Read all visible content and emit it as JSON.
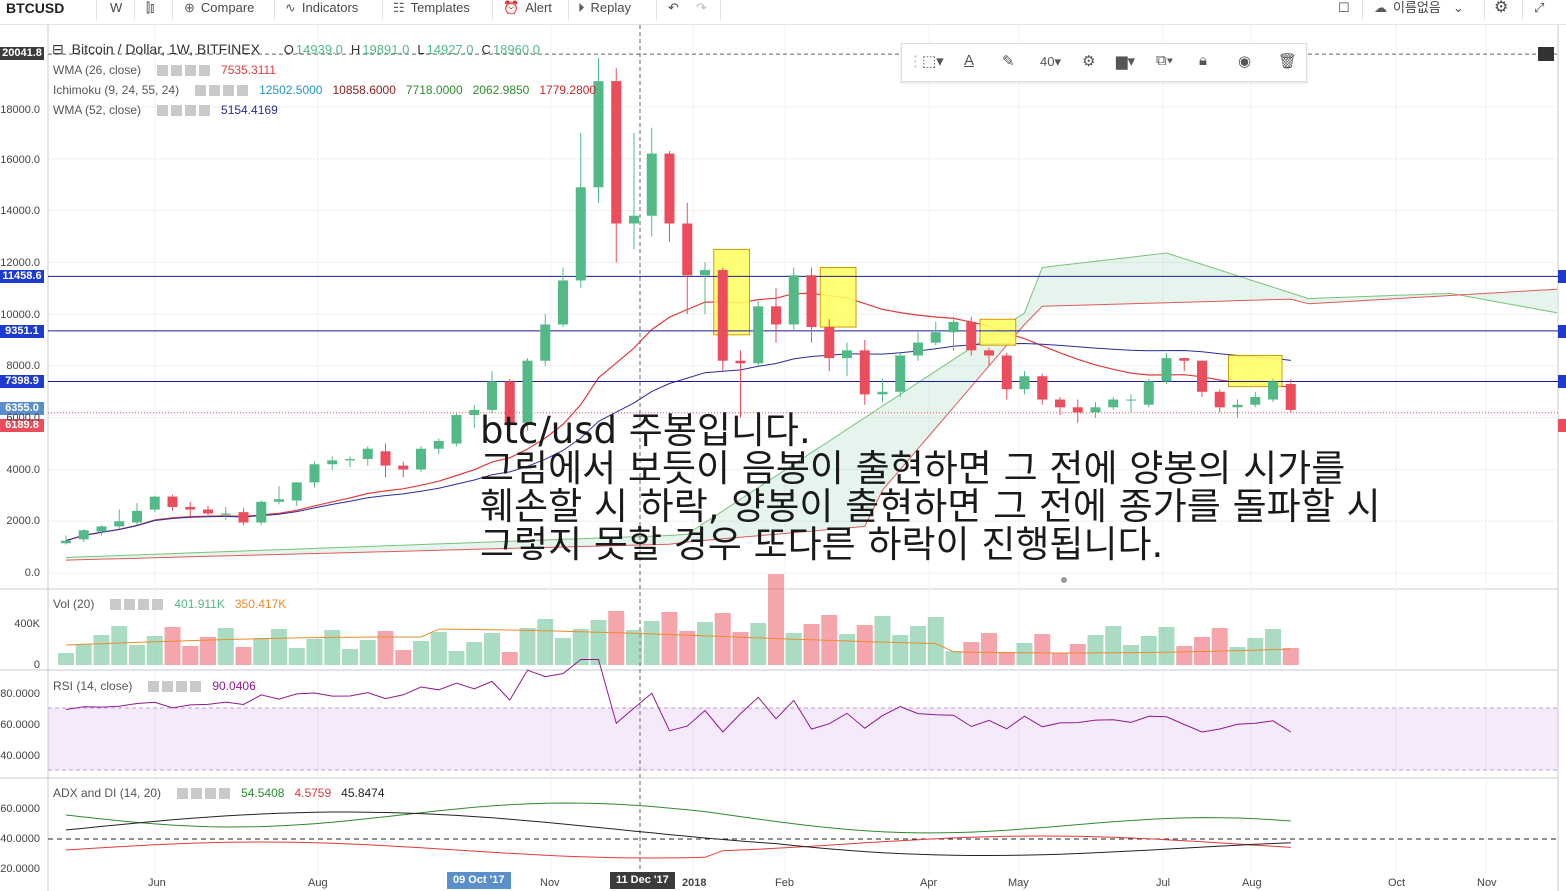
{
  "toolbar": {
    "symbol": "BTCUSD",
    "interval": "W",
    "compare": "Compare",
    "indicators": "Indicators",
    "templates": "Templates",
    "alert": "Alert",
    "replay": "Replay",
    "user": "이름없음"
  },
  "legend": {
    "title": "Bitcoin / Dollar, 1W, BITFINEX",
    "o_label": "O",
    "o": "14939.0",
    "h_label": "H",
    "h": "19891.0",
    "l_label": "L",
    "l": "14927.0",
    "c_label": "C",
    "c": "18960.0",
    "wma26": "WMA (26, close)",
    "wma26_val": "7535.3111",
    "ichimoku": "Ichimoku (9, 24, 55, 24)",
    "ich1": "12502.5000",
    "ich2": "10858.6000",
    "ich3": "7718.0000",
    "ich4": "2062.9850",
    "ich5": "1779.2800",
    "wma52": "WMA (52, close)",
    "wma52_val": "5154.4169",
    "vol": "Vol (20)",
    "vol1": "401.911K",
    "vol2": "350.417K",
    "rsi": "RSI (14, close)",
    "rsi_val": "90.0406",
    "adx": "ADX and DI (14, 20)",
    "adx1": "54.5408",
    "adx2": "4.5759",
    "adx3": "45.8474"
  },
  "price_tags": {
    "top": "20041.8",
    "p1": "11458.6",
    "p2": "9351.1",
    "p3": "7398.9",
    "p4": "6355.0",
    "p5": "6189.8"
  },
  "drawing_toolbar": {
    "size": "40"
  },
  "y_axis": [
    "18000.0",
    "16000.0",
    "14000.0",
    "12000.0",
    "10000.0",
    "8000.0",
    "6000.0",
    "4000.0",
    "2000.0",
    "0.0"
  ],
  "vol_axis": [
    "400K",
    "0"
  ],
  "rsi_axis": [
    "80.0000",
    "60.0000",
    "40.0000"
  ],
  "adx_axis": [
    "60.0000",
    "40.0000",
    "20.0000"
  ],
  "x_axis": [
    "Jun",
    "Aug",
    "Nov",
    "2018",
    "Feb",
    "Apr",
    "May",
    "Jul",
    "Aug",
    "Oct",
    "Nov"
  ],
  "x_badges": {
    "b1": "09 Oct '17",
    "b2": "11 Dec '17"
  },
  "annotation": {
    "line1": "btc/usd 주봉입니다.",
    "line2": "그림에서 보듯이 음봉이 출현하면 그 전에 양봉의 시가를",
    "line3": "훼손할 시 하락, 양봉이 출현하면 그 전에 종가를 돌파할 시",
    "line4": "그렇지 못할 경우 또다른 하락이 진행됩니다."
  },
  "colors": {
    "up": "#53b987",
    "down": "#eb4d5c",
    "highlight": "#ffff66",
    "level_line": "#1c1c9c",
    "tag_blue": "#1e3bd1",
    "tag_red": "#eb4d5c"
  },
  "chart_data": {
    "type": "candlestick",
    "candles": [
      [
        1150,
        1250,
        1100,
        1450
      ],
      [
        1300,
        1650,
        1200,
        1700
      ],
      [
        1600,
        1800,
        1450,
        1850
      ],
      [
        1800,
        2000,
        1700,
        2450
      ],
      [
        1950,
        2400,
        1850,
        2700
      ],
      [
        2450,
        2950,
        2350,
        2990
      ],
      [
        2950,
        2550,
        2400,
        3020
      ],
      [
        2550,
        2450,
        2200,
        2750
      ],
      [
        2450,
        2300,
        2150,
        2600
      ],
      [
        2250,
        2300,
        2050,
        2550
      ],
      [
        2350,
        1950,
        1850,
        2500
      ],
      [
        1950,
        2750,
        1850,
        2800
      ],
      [
        2750,
        2850,
        2650,
        3350
      ],
      [
        2800,
        3500,
        2600,
        3500
      ],
      [
        3500,
        4200,
        3300,
        4300
      ],
      [
        4200,
        4350,
        4000,
        4500
      ],
      [
        4350,
        4400,
        4100,
        4500
      ],
      [
        4400,
        4800,
        4150,
        4900
      ],
      [
        4700,
        4150,
        3700,
        5000
      ],
      [
        4150,
        4000,
        3700,
        4300
      ],
      [
        4000,
        4800,
        3900,
        4900
      ],
      [
        4800,
        5100,
        4600,
        5200
      ],
      [
        5000,
        6100,
        4900,
        6150
      ],
      [
        6100,
        6300,
        5600,
        6500
      ],
      [
        6300,
        7400,
        6150,
        7800
      ],
      [
        7400,
        5800,
        5600,
        7500
      ],
      [
        5800,
        8200,
        5500,
        8300
      ],
      [
        8200,
        9600,
        8000,
        10000
      ],
      [
        9600,
        11300,
        9500,
        11800
      ],
      [
        11300,
        14900,
        11000,
        17000
      ],
      [
        14900,
        19000,
        14300,
        19900
      ],
      [
        19000,
        13500,
        12000,
        19500
      ],
      [
        13500,
        13800,
        12500,
        17000
      ],
      [
        13800,
        16200,
        13000,
        17200
      ],
      [
        16200,
        13500,
        12800,
        16300
      ],
      [
        13500,
        11500,
        10000,
        14300
      ],
      [
        11500,
        11700,
        10000,
        12000
      ],
      [
        11700,
        8200,
        7800,
        11800
      ],
      [
        8200,
        8100,
        6000,
        8600
      ],
      [
        8100,
        10300,
        8000,
        10500
      ],
      [
        10300,
        9600,
        8900,
        11000
      ],
      [
        9600,
        11500,
        9400,
        11800
      ],
      [
        11500,
        9500,
        8900,
        11800
      ],
      [
        9500,
        8300,
        7800,
        9800
      ],
      [
        8300,
        8600,
        7600,
        8900
      ],
      [
        8600,
        6900,
        6500,
        9000
      ],
      [
        6900,
        7000,
        6600,
        7500
      ],
      [
        7000,
        8400,
        6800,
        8500
      ],
      [
        8400,
        8900,
        8200,
        9300
      ],
      [
        8900,
        9300,
        8800,
        9700
      ],
      [
        9300,
        9700,
        8600,
        9900
      ],
      [
        9700,
        8600,
        8400,
        9900
      ],
      [
        8600,
        8400,
        8000,
        8700
      ],
      [
        8400,
        7100,
        6700,
        8500
      ],
      [
        7100,
        7600,
        6900,
        7800
      ],
      [
        7600,
        6700,
        6500,
        7700
      ],
      [
        6700,
        6400,
        6100,
        6800
      ],
      [
        6400,
        6200,
        5800,
        6700
      ],
      [
        6200,
        6400,
        6000,
        6600
      ],
      [
        6400,
        6700,
        6300,
        6800
      ],
      [
        6700,
        6700,
        6200,
        6900
      ],
      [
        6500,
        7400,
        6400,
        7500
      ],
      [
        7400,
        8300,
        7300,
        8500
      ],
      [
        8300,
        8200,
        7800,
        8300
      ],
      [
        8200,
        7000,
        6800,
        8200
      ],
      [
        7000,
        6400,
        6200,
        7100
      ],
      [
        6400,
        6500,
        6000,
        6700
      ],
      [
        6500,
        6800,
        6400,
        7000
      ],
      [
        6700,
        7400,
        6600,
        7500
      ],
      [
        7300,
        6300,
        6200,
        7500
      ]
    ],
    "y_range": [
      0,
      20000
    ]
  }
}
